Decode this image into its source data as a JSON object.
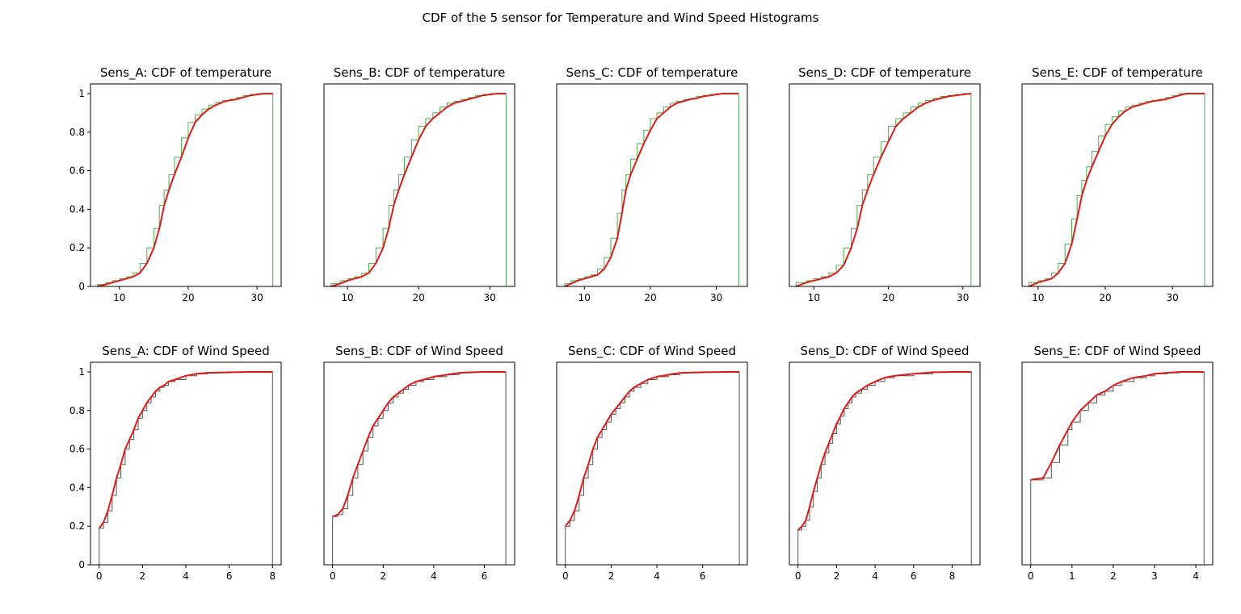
{
  "figure": {
    "title": "CDF of the 5 sensor for Temperature and Wind Speed Histograms"
  },
  "colors": {
    "cdf_line": "#dd1c1a",
    "temp_hist": "#4caf50",
    "wind_hist": "#555555",
    "axes": "#000000"
  },
  "chart_data": [
    {
      "type": "line",
      "title": "Sens_A: CDF of temperature",
      "xlim": [
        5.8,
        33.5
      ],
      "ylim": [
        0,
        1.05
      ],
      "xticks": [
        10,
        20,
        30
      ],
      "yticks": [
        0.0,
        0.2,
        0.4,
        0.6,
        0.8,
        1.0
      ],
      "hist_end": 32.3,
      "series": [
        {
          "x": [
            6.8,
            8,
            9,
            10,
            11,
            12,
            13,
            14,
            15,
            15.8,
            16.5,
            17.2,
            18,
            19,
            20,
            21,
            22,
            23,
            24,
            25,
            26,
            27,
            28,
            29,
            30,
            31,
            32.3
          ],
          "y": [
            0.0,
            0.01,
            0.02,
            0.03,
            0.04,
            0.05,
            0.07,
            0.12,
            0.2,
            0.3,
            0.42,
            0.5,
            0.58,
            0.67,
            0.77,
            0.85,
            0.89,
            0.92,
            0.94,
            0.955,
            0.965,
            0.97,
            0.98,
            0.99,
            0.995,
            1.0,
            1.0
          ]
        }
      ]
    },
    {
      "type": "line",
      "title": "Sens_B: CDF of temperature",
      "xlim": [
        6.7,
        33.5
      ],
      "ylim": [
        0,
        1.05
      ],
      "xticks": [
        10,
        20,
        30
      ],
      "yticks": [
        0.0,
        0.2,
        0.4,
        0.6,
        0.8,
        1.0
      ],
      "hist_end": 32.3,
      "series": [
        {
          "x": [
            7.7,
            9,
            10,
            11,
            12,
            13,
            14,
            15,
            15.8,
            16.5,
            17.2,
            18,
            19,
            20,
            21,
            22,
            23,
            24,
            25,
            26,
            27,
            28,
            29,
            30,
            31,
            32.3
          ],
          "y": [
            0.0,
            0.015,
            0.03,
            0.04,
            0.05,
            0.07,
            0.12,
            0.2,
            0.3,
            0.42,
            0.5,
            0.58,
            0.67,
            0.76,
            0.83,
            0.87,
            0.9,
            0.93,
            0.95,
            0.96,
            0.97,
            0.98,
            0.99,
            0.995,
            1.0,
            1.0
          ]
        }
      ]
    },
    {
      "type": "line",
      "title": "Sens_C: CDF of temperature",
      "xlim": [
        5.8,
        34.7
      ],
      "ylim": [
        0,
        1.05
      ],
      "xticks": [
        10,
        20,
        30
      ],
      "yticks": [
        0.0,
        0.2,
        0.4,
        0.6,
        0.8,
        1.0
      ],
      "hist_end": 33.4,
      "series": [
        {
          "x": [
            7.0,
            8,
            9,
            10,
            11,
            12,
            13,
            14,
            15,
            15.7,
            16.3,
            17,
            18,
            19,
            20,
            21,
            22,
            23,
            24,
            25,
            26,
            27,
            28,
            29,
            30,
            31,
            32,
            33.4
          ],
          "y": [
            0.0,
            0.015,
            0.03,
            0.04,
            0.05,
            0.06,
            0.09,
            0.15,
            0.25,
            0.38,
            0.5,
            0.58,
            0.66,
            0.74,
            0.81,
            0.87,
            0.9,
            0.93,
            0.95,
            0.96,
            0.97,
            0.975,
            0.985,
            0.99,
            0.995,
            1.0,
            1.0,
            1.0
          ]
        }
      ]
    },
    {
      "type": "line",
      "title": "Sens_D: CDF of temperature",
      "xlim": [
        6.7,
        32.3
      ],
      "ylim": [
        0,
        1.05
      ],
      "xticks": [
        10,
        20,
        30
      ],
      "yticks": [
        0.0,
        0.2,
        0.4,
        0.6,
        0.8,
        1.0
      ],
      "hist_end": 31.1,
      "series": [
        {
          "x": [
            7.6,
            9,
            10,
            11,
            12,
            13,
            14,
            15,
            15.8,
            16.5,
            17.2,
            18,
            19,
            20,
            21,
            22,
            23,
            24,
            25,
            26,
            27,
            28,
            29,
            30,
            31.1
          ],
          "y": [
            0.0,
            0.02,
            0.03,
            0.04,
            0.05,
            0.07,
            0.11,
            0.2,
            0.3,
            0.42,
            0.5,
            0.58,
            0.67,
            0.75,
            0.83,
            0.87,
            0.9,
            0.93,
            0.95,
            0.965,
            0.975,
            0.985,
            0.99,
            0.995,
            1.0
          ]
        }
      ]
    },
    {
      "type": "line",
      "title": "Sens_E: CDF of temperature",
      "xlim": [
        7.6,
        36.0
      ],
      "ylim": [
        0,
        1.05
      ],
      "xticks": [
        10,
        20,
        30
      ],
      "yticks": [
        0.0,
        0.2,
        0.4,
        0.6,
        0.8,
        1.0
      ],
      "hist_end": 34.8,
      "series": [
        {
          "x": [
            8.6,
            10,
            11,
            12,
            13,
            14,
            15,
            15.8,
            16.5,
            17.2,
            18,
            19,
            20,
            21,
            22,
            23,
            24,
            25,
            26,
            27,
            28,
            29,
            30,
            31,
            32,
            33,
            34.8
          ],
          "y": [
            0.0,
            0.02,
            0.03,
            0.04,
            0.07,
            0.12,
            0.22,
            0.35,
            0.47,
            0.55,
            0.62,
            0.7,
            0.78,
            0.84,
            0.88,
            0.91,
            0.93,
            0.94,
            0.95,
            0.96,
            0.965,
            0.97,
            0.98,
            0.99,
            1.0,
            1.0,
            1.0
          ]
        }
      ]
    },
    {
      "type": "line",
      "title": "Sens_A: CDF of Wind Speed",
      "xlim": [
        -0.4,
        8.4
      ],
      "ylim": [
        0,
        1.05
      ],
      "xticks": [
        0,
        2,
        4,
        6,
        8
      ],
      "yticks": [
        0.0,
        0.2,
        0.4,
        0.6,
        0.8,
        1.0
      ],
      "hist_end": 8.0,
      "first_jump": 0.19,
      "series": [
        {
          "x": [
            0,
            0.2,
            0.4,
            0.6,
            0.8,
            1.0,
            1.2,
            1.4,
            1.6,
            1.8,
            2.0,
            2.2,
            2.4,
            2.6,
            2.8,
            3.0,
            3.2,
            3.5,
            4.0,
            4.5,
            5.0,
            6.0,
            7.0,
            8.0
          ],
          "y": [
            0.19,
            0.22,
            0.28,
            0.36,
            0.45,
            0.52,
            0.6,
            0.65,
            0.7,
            0.76,
            0.8,
            0.84,
            0.87,
            0.9,
            0.92,
            0.93,
            0.95,
            0.96,
            0.98,
            0.99,
            0.995,
            0.998,
            1.0,
            1.0
          ]
        }
      ]
    },
    {
      "type": "line",
      "title": "Sens_B: CDF of Wind Speed",
      "xlim": [
        -0.34,
        7.2
      ],
      "ylim": [
        0,
        1.05
      ],
      "xticks": [
        0,
        2,
        4,
        6
      ],
      "yticks": [
        0.0,
        0.2,
        0.4,
        0.6,
        0.8,
        1.0
      ],
      "hist_end": 6.85,
      "first_jump": 0.25,
      "series": [
        {
          "x": [
            0,
            0.2,
            0.4,
            0.6,
            0.8,
            1.0,
            1.2,
            1.4,
            1.6,
            1.8,
            2.0,
            2.2,
            2.4,
            2.6,
            2.8,
            3.0,
            3.3,
            3.6,
            4.0,
            4.5,
            5.0,
            5.5,
            6.0,
            6.85
          ],
          "y": [
            0.25,
            0.26,
            0.29,
            0.36,
            0.45,
            0.52,
            0.59,
            0.66,
            0.72,
            0.76,
            0.8,
            0.84,
            0.87,
            0.89,
            0.91,
            0.93,
            0.95,
            0.96,
            0.975,
            0.985,
            0.995,
            0.998,
            1.0,
            1.0
          ]
        }
      ]
    },
    {
      "type": "line",
      "title": "Sens_C: CDF of Wind Speed",
      "xlim": [
        -0.38,
        7.95
      ],
      "ylim": [
        0,
        1.05
      ],
      "xticks": [
        0,
        2,
        4,
        6
      ],
      "yticks": [
        0.0,
        0.2,
        0.4,
        0.6,
        0.8,
        1.0
      ],
      "hist_end": 7.6,
      "first_jump": 0.2,
      "series": [
        {
          "x": [
            0,
            0.2,
            0.4,
            0.6,
            0.8,
            1.0,
            1.2,
            1.4,
            1.6,
            1.8,
            2.0,
            2.2,
            2.4,
            2.6,
            2.8,
            3.0,
            3.3,
            3.6,
            4.0,
            4.5,
            5.0,
            6.0,
            7.0,
            7.6
          ],
          "y": [
            0.2,
            0.23,
            0.28,
            0.36,
            0.45,
            0.52,
            0.6,
            0.66,
            0.7,
            0.74,
            0.78,
            0.81,
            0.84,
            0.87,
            0.9,
            0.92,
            0.94,
            0.96,
            0.975,
            0.985,
            0.995,
            0.998,
            1.0,
            1.0
          ]
        }
      ]
    },
    {
      "type": "line",
      "title": "Sens_D: CDF of Wind Speed",
      "xlim": [
        -0.45,
        9.45
      ],
      "ylim": [
        0,
        1.05
      ],
      "xticks": [
        0,
        2,
        4,
        6,
        8
      ],
      "yticks": [
        0.0,
        0.2,
        0.4,
        0.6,
        0.8,
        1.0
      ],
      "hist_end": 9.0,
      "first_jump": 0.18,
      "series": [
        {
          "x": [
            0,
            0.2,
            0.4,
            0.6,
            0.8,
            1.0,
            1.2,
            1.4,
            1.6,
            1.8,
            2.0,
            2.2,
            2.4,
            2.6,
            2.8,
            3.0,
            3.3,
            3.6,
            4.0,
            4.5,
            5.0,
            6.0,
            7.0,
            8.0,
            9.0
          ],
          "y": [
            0.18,
            0.2,
            0.23,
            0.3,
            0.38,
            0.45,
            0.52,
            0.58,
            0.63,
            0.68,
            0.73,
            0.77,
            0.81,
            0.84,
            0.87,
            0.89,
            0.91,
            0.93,
            0.95,
            0.97,
            0.98,
            0.99,
            0.998,
            1.0,
            1.0
          ]
        }
      ]
    },
    {
      "type": "line",
      "title": "Sens_E: CDF of Wind Speed",
      "xlim": [
        -0.21,
        4.41
      ],
      "ylim": [
        0,
        1.05
      ],
      "xticks": [
        0,
        1,
        2,
        3,
        4
      ],
      "yticks": [
        0.0,
        0.2,
        0.4,
        0.6,
        0.8,
        1.0
      ],
      "hist_end": 4.2,
      "first_jump": 0.44,
      "series": [
        {
          "x": [
            0,
            0.3,
            0.5,
            0.7,
            0.9,
            1.0,
            1.2,
            1.4,
            1.6,
            1.8,
            2.0,
            2.2,
            2.5,
            2.8,
            3.0,
            3.3,
            3.6,
            4.0,
            4.2
          ],
          "y": [
            0.44,
            0.45,
            0.53,
            0.62,
            0.7,
            0.74,
            0.8,
            0.84,
            0.88,
            0.9,
            0.93,
            0.95,
            0.97,
            0.98,
            0.99,
            0.995,
            1.0,
            1.0,
            1.0
          ]
        }
      ]
    }
  ]
}
